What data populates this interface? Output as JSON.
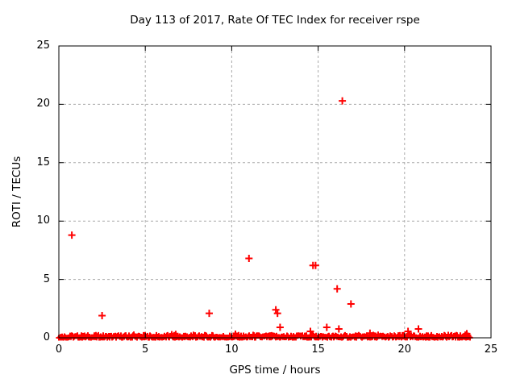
{
  "chart_data": {
    "type": "scatter",
    "title": "Day 113 of 2017, Rate Of TEC Index for receiver rspe",
    "xlabel": "GPS time / hours",
    "ylabel": "ROTI / TECUs",
    "xlim": [
      0,
      25
    ],
    "ylim": [
      0,
      25
    ],
    "x_ticks": [
      0,
      5,
      10,
      15,
      20,
      25
    ],
    "y_ticks": [
      0,
      5,
      10,
      15,
      20,
      25
    ],
    "grid": "dashed gray at major ticks, mirrored inward tick marks on all four sides",
    "legend_position": "none",
    "marker": "plus",
    "marker_color": "#ff0000",
    "grid_color": "#aaaaaa",
    "border_color": "#000000",
    "points": [
      {
        "x": 0.75,
        "y": 8.8
      },
      {
        "x": 2.5,
        "y": 1.9
      },
      {
        "x": 8.7,
        "y": 2.1
      },
      {
        "x": 11.0,
        "y": 6.8
      },
      {
        "x": 12.55,
        "y": 2.4
      },
      {
        "x": 12.65,
        "y": 2.1
      },
      {
        "x": 12.8,
        "y": 0.9
      },
      {
        "x": 14.55,
        "y": 0.55
      },
      {
        "x": 14.7,
        "y": 6.2
      },
      {
        "x": 14.85,
        "y": 6.2
      },
      {
        "x": 15.5,
        "y": 0.9
      },
      {
        "x": 16.1,
        "y": 4.2
      },
      {
        "x": 16.2,
        "y": 0.76
      },
      {
        "x": 16.4,
        "y": 20.3
      },
      {
        "x": 16.9,
        "y": 2.9
      },
      {
        "x": 18.0,
        "y": 0.4
      },
      {
        "x": 20.2,
        "y": 0.55
      },
      {
        "x": 20.8,
        "y": 0.76
      },
      {
        "x": 23.6,
        "y": 0.35
      }
    ],
    "baseline_band": {
      "description": "dense band of overlapping plus markers hugging ROTI ~0 for the whole day",
      "x_start": 0.0,
      "x_end": 23.8,
      "y_min": 0.0,
      "y_max": 0.45
    }
  }
}
